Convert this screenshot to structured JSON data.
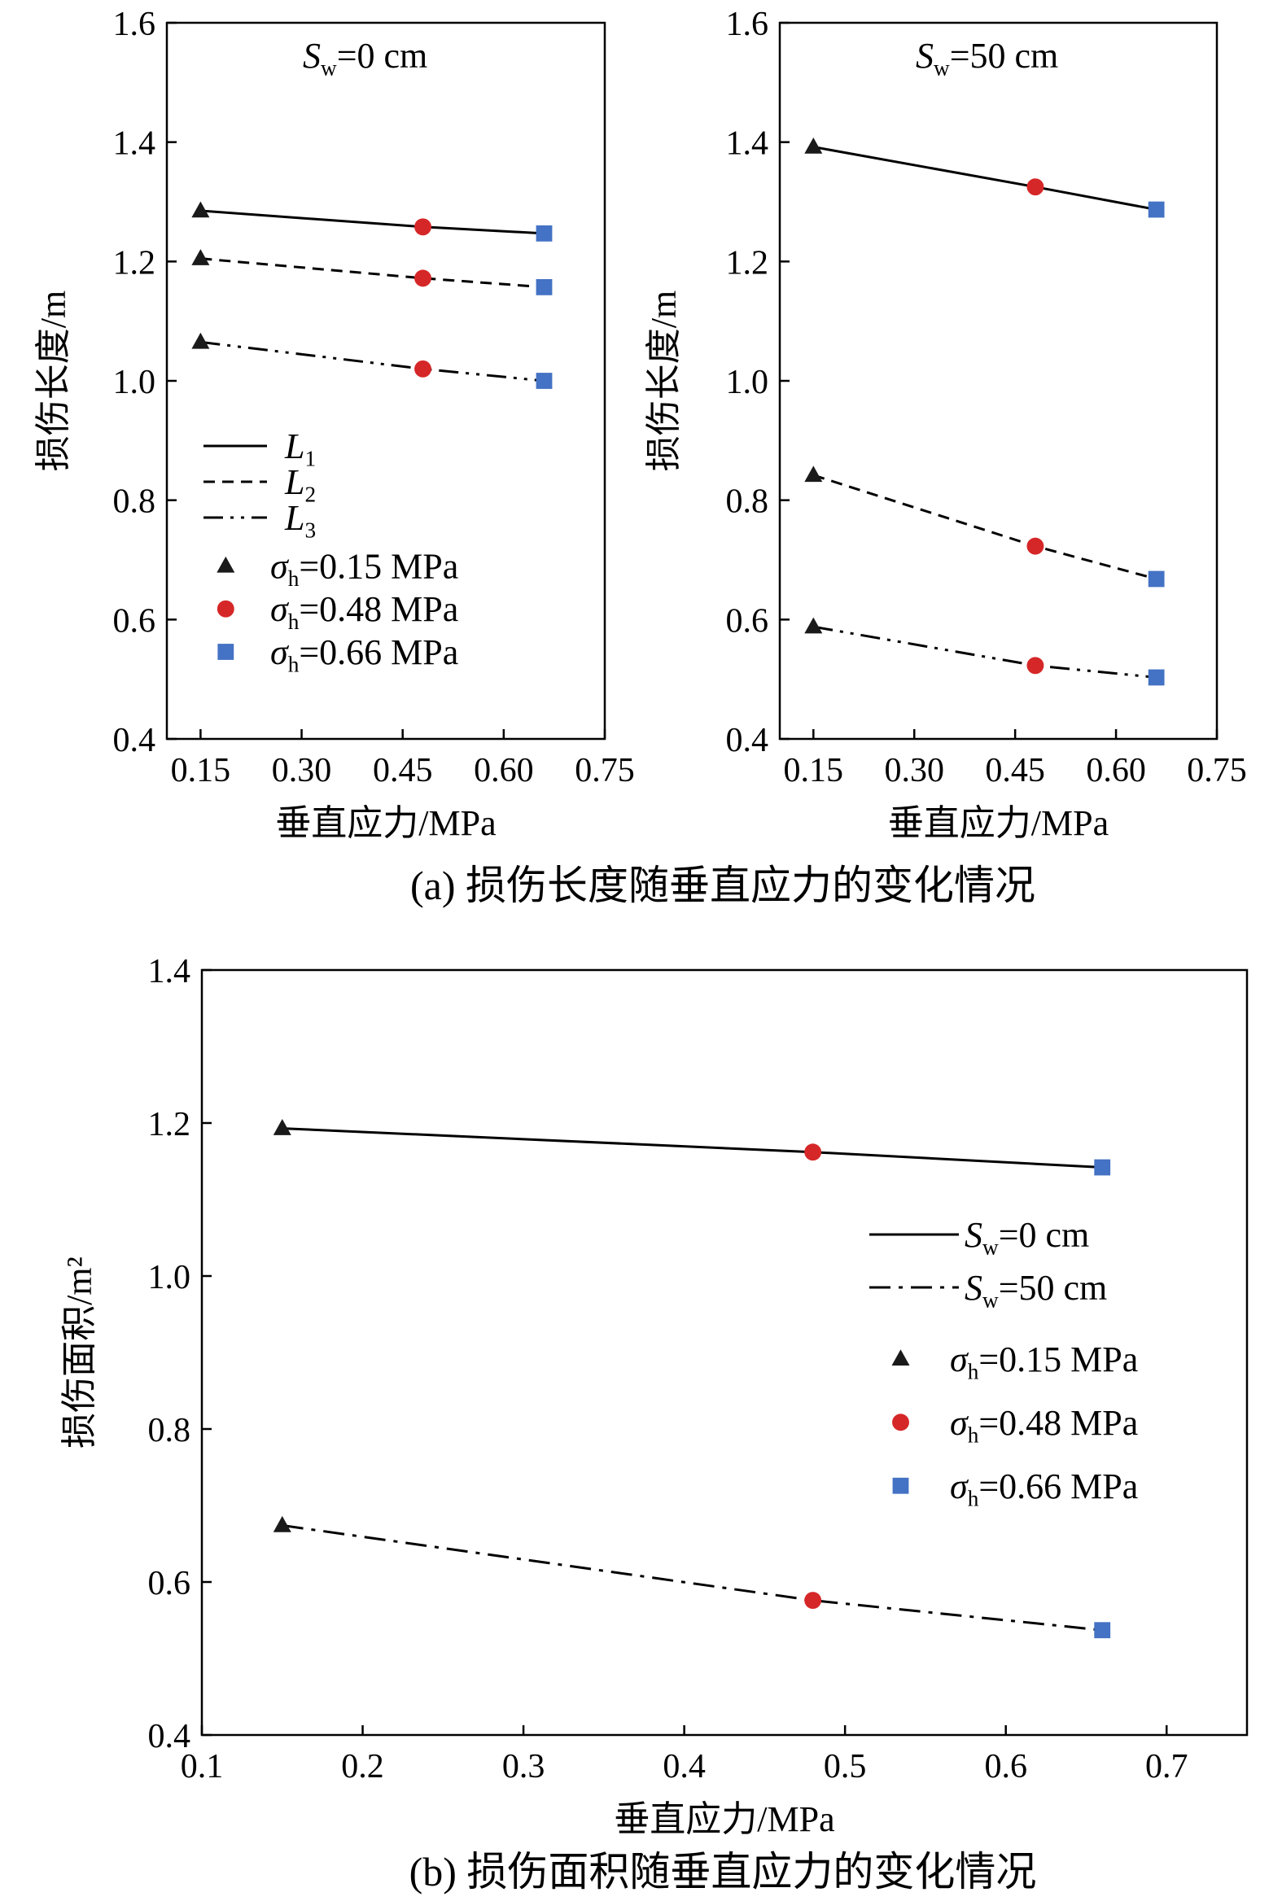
{
  "colors": {
    "triangle": "#1a1a1a",
    "circle": "#d62728",
    "square": "#4472c4",
    "axis": "#000000"
  },
  "legend_markers": [
    {
      "shape": "triangle",
      "sigma": "σ",
      "sub": "h",
      "text": "=0.15 MPa"
    },
    {
      "shape": "circle",
      "sigma": "σ",
      "sub": "h",
      "text": "=0.48 MPa"
    },
    {
      "shape": "square",
      "sigma": "σ",
      "sub": "h",
      "text": "=0.66 MPa"
    }
  ],
  "chart_data": [
    {
      "id": "a-left",
      "type": "line",
      "title": {
        "main": "S",
        "sub": "w",
        "rest": "=0 cm"
      },
      "ylabel": "损伤长度/m",
      "xlabel": "垂直应力/MPa",
      "xlim": [
        0.1,
        0.75
      ],
      "ylim": [
        0.4,
        1.6
      ],
      "xticks": [
        "0.15",
        "0.30",
        "0.45",
        "0.60",
        "0.75"
      ],
      "yticks": [
        "0.4",
        "0.6",
        "0.8",
        "1.0",
        "1.2",
        "1.4",
        "1.6"
      ],
      "x": [
        0.15,
        0.48,
        0.66
      ],
      "series": [
        {
          "name": "L",
          "sub": "1",
          "style": "solid",
          "values": [
            1.285,
            1.258,
            1.247
          ]
        },
        {
          "name": "L",
          "sub": "2",
          "style": "dash",
          "values": [
            1.205,
            1.172,
            1.157
          ]
        },
        {
          "name": "L",
          "sub": "3",
          "style": "dashdotdot",
          "values": [
            1.065,
            1.02,
            1.0
          ]
        }
      ]
    },
    {
      "id": "a-right",
      "type": "line",
      "title": {
        "main": "S",
        "sub": "w",
        "rest": "=50 cm"
      },
      "ylabel": "损伤长度/m",
      "xlabel": "垂直应力/MPa",
      "xlim": [
        0.1,
        0.75
      ],
      "ylim": [
        0.4,
        1.6
      ],
      "xticks": [
        "0.15",
        "0.30",
        "0.45",
        "0.60",
        "0.75"
      ],
      "yticks": [
        "0.4",
        "0.6",
        "0.8",
        "1.0",
        "1.2",
        "1.4",
        "1.6"
      ],
      "x": [
        0.15,
        0.48,
        0.66
      ],
      "series": [
        {
          "name": "L",
          "sub": "1",
          "style": "solid",
          "values": [
            1.392,
            1.325,
            1.287
          ]
        },
        {
          "name": "L",
          "sub": "2",
          "style": "dash",
          "values": [
            0.842,
            0.723,
            0.668
          ]
        },
        {
          "name": "L",
          "sub": "3",
          "style": "dashdotdot",
          "values": [
            0.588,
            0.523,
            0.503
          ]
        }
      ]
    },
    {
      "id": "b",
      "type": "line",
      "ylabel": "损伤面积/m²",
      "xlabel": "垂直应力/MPa",
      "xlim": [
        0.1,
        0.75
      ],
      "ylim": [
        0.4,
        1.4
      ],
      "xticks": [
        "0.1",
        "0.2",
        "0.3",
        "0.4",
        "0.5",
        "0.6",
        "0.7"
      ],
      "yticks": [
        "0.4",
        "0.6",
        "0.8",
        "1.0",
        "1.2",
        "1.4"
      ],
      "x": [
        0.15,
        0.48,
        0.66
      ],
      "series": [
        {
          "name": "S",
          "sub": "w",
          "rest": "=0 cm",
          "style": "solid",
          "values": [
            1.193,
            1.162,
            1.142
          ]
        },
        {
          "name": "S",
          "sub": "w",
          "rest": "=50 cm",
          "style": "dashdot",
          "values": [
            0.674,
            0.576,
            0.537
          ]
        }
      ]
    }
  ],
  "captions": {
    "a": "(a) 损伤长度随垂直应力的变化情况",
    "b": "(b) 损伤面积随垂直应力的变化情况"
  }
}
